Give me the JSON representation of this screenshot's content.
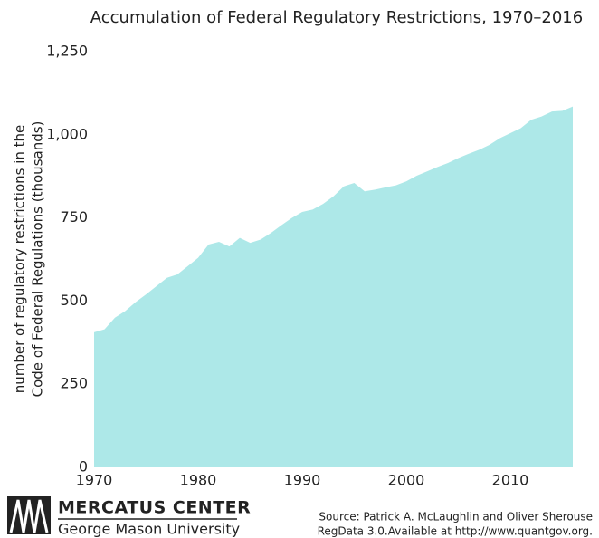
{
  "chart_data": {
    "type": "area",
    "title": "Accumulation of Federal Regulatory Restrictions, 1970–2016",
    "y_label": [
      "number of regulatory restrictions in the",
      "Code of Federal Regulations (thousands)"
    ],
    "color": "#ade8e8",
    "x": [
      1970,
      1971,
      1972,
      1973,
      1974,
      1975,
      1976,
      1977,
      1978,
      1979,
      1980,
      1981,
      1982,
      1983,
      1984,
      1985,
      1986,
      1987,
      1988,
      1989,
      1990,
      1991,
      1992,
      1993,
      1994,
      1995,
      1996,
      1997,
      1998,
      1999,
      2000,
      2001,
      2002,
      2003,
      2004,
      2005,
      2006,
      2007,
      2008,
      2009,
      2010,
      2011,
      2012,
      2013,
      2014,
      2015,
      2016
    ],
    "values": [
      406,
      415,
      450,
      470,
      497,
      520,
      545,
      570,
      580,
      605,
      630,
      670,
      678,
      664,
      690,
      675,
      685,
      705,
      728,
      750,
      768,
      775,
      792,
      815,
      845,
      855,
      830,
      835,
      842,
      848,
      860,
      877,
      890,
      903,
      915,
      930,
      943,
      955,
      970,
      990,
      1005,
      1020,
      1045,
      1055,
      1070,
      1072,
      1085
    ],
    "xlim": [
      1970,
      2016
    ],
    "xticks": [
      1970,
      1980,
      1990,
      2000,
      2010
    ],
    "ylim": [
      0,
      1250
    ],
    "yticks": [
      0,
      250,
      500,
      750,
      {
        "value": 1000,
        "label": "1,000"
      },
      {
        "value": 1250,
        "label": "1,250"
      }
    ],
    "grid": false
  },
  "logo": {
    "name": "MERCATUS CENTER",
    "subtitle": "George Mason University"
  },
  "source": [
    "Source: Patrick A. McLaughlin and Oliver Sherouse",
    "RegData 3.0.Available at http://www.quantgov.org."
  ]
}
